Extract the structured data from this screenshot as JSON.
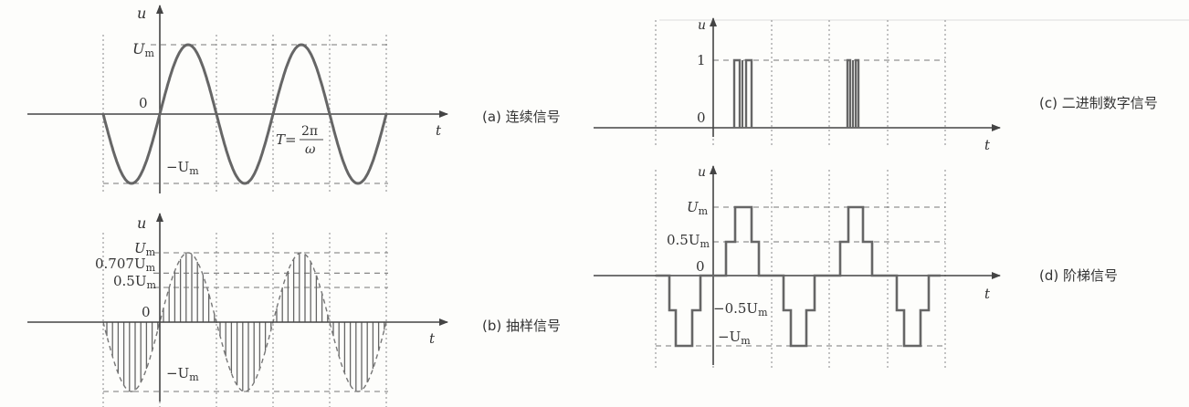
{
  "panels": {
    "a": {
      "caption": "(a) 连续信号",
      "axis_u": "u",
      "axis_t": "t",
      "label_um": "U",
      "label_um_sub": "m",
      "label_zero": "0",
      "label_neg_um": "−U",
      "label_neg_um_sub": "m",
      "period_lhs": "T=",
      "period_num": "2π",
      "period_den": "ω"
    },
    "b": {
      "caption": "(b) 抽样信号",
      "axis_u": "u",
      "axis_t": "t",
      "label_um": "U",
      "label_um_sub": "m",
      "label_0707": "0.707U",
      "label_0707_sub": "m",
      "label_05": "0.5U",
      "label_05_sub": "m",
      "label_zero": "0",
      "label_neg_um": "−U",
      "label_neg_um_sub": "m"
    },
    "c": {
      "caption": "(c) 二进制数字信号",
      "axis_u": "u",
      "axis_t": "t",
      "label_one": "1",
      "label_zero": "0"
    },
    "d": {
      "caption": "(d) 阶梯信号",
      "axis_u": "u",
      "axis_t": "t",
      "label_um": "U",
      "label_um_sub": "m",
      "label_05": "0.5U",
      "label_05_sub": "m",
      "label_zero": "0",
      "label_neg05": "−0.5U",
      "label_neg05_sub": "m",
      "label_neg_um": "−U",
      "label_neg_um_sub": "m"
    }
  },
  "colors": {
    "signal": "#555555",
    "dashed": "#777777",
    "axis": "#444444"
  }
}
